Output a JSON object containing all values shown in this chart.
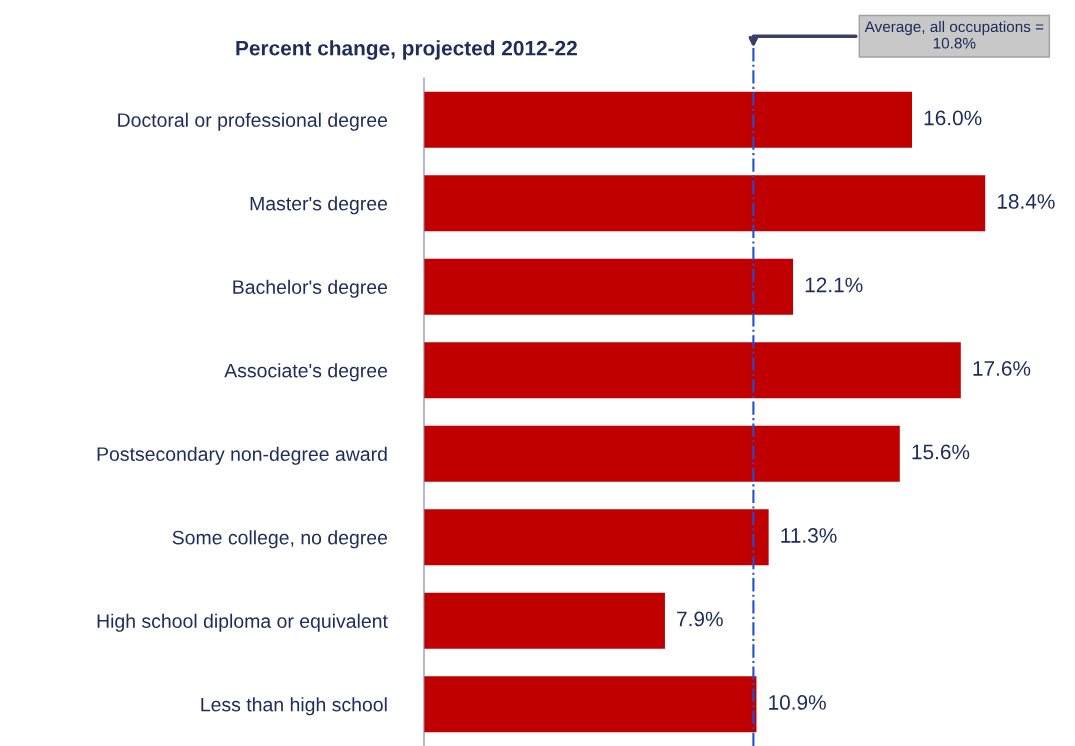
{
  "chart_data": {
    "type": "bar",
    "orientation": "horizontal",
    "title": "Percent change, projected 2012-22",
    "categories": [
      "Doctoral or professional degree",
      "Master's degree",
      "Bachelor's degree",
      "Associate's degree",
      "Postsecondary non-degree award",
      "Some college, no degree",
      "High school diploma or equivalent",
      "Less than high school"
    ],
    "values": [
      16.0,
      18.4,
      12.1,
      17.6,
      15.6,
      11.3,
      7.9,
      10.9
    ],
    "value_labels": [
      "16.0%",
      "18.4%",
      "12.1%",
      "17.6%",
      "15.6%",
      "11.3%",
      "7.9%",
      "10.9%"
    ],
    "color": "#c00000",
    "ref_lines": [
      {
        "axis": "x",
        "value": 10.8,
        "label": "Average, all occupations =\n10.8%",
        "color": "#1f4fd8",
        "line_style": "dashdot"
      }
    ],
    "grid": false,
    "legend": false
  }
}
